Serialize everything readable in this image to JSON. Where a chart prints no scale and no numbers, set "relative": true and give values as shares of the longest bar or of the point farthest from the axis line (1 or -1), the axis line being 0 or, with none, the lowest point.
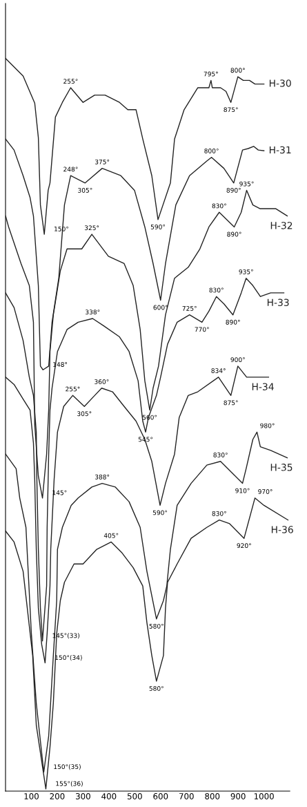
{
  "chart_data": {
    "type": "line",
    "relative": true,
    "xlim": [
      0,
      1100
    ],
    "xticks": [
      100,
      200,
      300,
      400,
      500,
      600,
      700,
      800,
      900,
      1000
    ],
    "grid": false,
    "legend": false,
    "marker": "none",
    "line_style": "solid",
    "series": [
      {
        "name": "H-30",
        "color": "#222222",
        "x": [
          0,
          68,
          113,
          127,
          135,
          150,
          165,
          172,
          193,
          220,
          252,
          300,
          345,
          385,
          441,
          473,
          505,
          531,
          566,
          590,
          638,
          654,
          691,
          744,
          787,
          795,
          800,
          832,
          853,
          872,
          899,
          920,
          944,
          965,
          1000
        ],
        "values": [
          1.0,
          0.976,
          0.939,
          0.892,
          0.8,
          0.76,
          0.82,
          0.83,
          0.92,
          0.94,
          0.96,
          0.94,
          0.95,
          0.95,
          0.94,
          0.93,
          0.93,
          0.89,
          0.84,
          0.78,
          0.83,
          0.89,
          0.93,
          0.96,
          0.96,
          0.97,
          0.96,
          0.96,
          0.955,
          0.94,
          0.975,
          0.97,
          0.97,
          0.965,
          0.965
        ]
      },
      {
        "name": "H-31",
        "color": "#222222",
        "x": [
          0,
          33,
          68,
          95,
          108,
          127,
          135,
          145,
          167,
          180,
          206,
          228,
          252,
          308,
          374,
          446,
          499,
          539,
          571,
          600,
          619,
          659,
          712,
          779,
          797,
          845,
          883,
          917,
          939,
          960,
          978,
          1000
        ],
        "values": [
          0.89,
          0.875,
          0.84,
          0.81,
          0.785,
          0.69,
          0.58,
          0.575,
          0.58,
          0.64,
          0.7,
          0.8,
          0.84,
          0.83,
          0.85,
          0.84,
          0.82,
          0.77,
          0.72,
          0.67,
          0.72,
          0.8,
          0.84,
          0.86,
          0.865,
          0.85,
          0.83,
          0.875,
          0.877,
          0.88,
          0.875,
          0.874
        ]
      },
      {
        "name": "H-32",
        "color": "#222222",
        "x": [
          0,
          12,
          60,
          92,
          108,
          113,
          127,
          143,
          159,
          167,
          172,
          185,
          212,
          238,
          295,
          334,
          398,
          459,
          494,
          521,
          539,
          558,
          571,
          592,
          619,
          654,
          707,
          752,
          787,
          827,
          885,
          912,
          933,
          957,
          984,
          1045,
          1090
        ],
        "values": [
          0.785,
          0.77,
          0.72,
          0.69,
          0.64,
          0.5,
          0.43,
          0.4,
          0.46,
          0.52,
          0.6,
          0.65,
          0.71,
          0.74,
          0.74,
          0.76,
          0.73,
          0.72,
          0.69,
          0.63,
          0.56,
          0.52,
          0.55,
          0.58,
          0.65,
          0.7,
          0.715,
          0.74,
          0.77,
          0.79,
          0.77,
          0.79,
          0.82,
          0.8,
          0.795,
          0.795,
          0.785
        ]
      },
      {
        "name": "H-33",
        "color": "#222222",
        "x": [
          0,
          33,
          68,
          92,
          108,
          119,
          121,
          127,
          135,
          143,
          159,
          161,
          167,
          172,
          180,
          201,
          238,
          281,
          337,
          380,
          441,
          478,
          513,
          531,
          542,
          553,
          584,
          600,
          627,
          664,
          712,
          760,
          787,
          816,
          845,
          880,
          912,
          931,
          957,
          986,
          1026,
          1077
        ],
        "values": [
          0.68,
          0.66,
          0.615,
          0.565,
          0.54,
          0.49,
          0.43,
          0.33,
          0.25,
          0.205,
          0.28,
          0.36,
          0.46,
          0.52,
          0.55,
          0.6,
          0.63,
          0.64,
          0.645,
          0.635,
          0.62,
          0.6,
          0.56,
          0.505,
          0.49,
          0.51,
          0.54,
          0.565,
          0.61,
          0.64,
          0.65,
          0.64,
          0.655,
          0.675,
          0.665,
          0.65,
          0.68,
          0.7,
          0.69,
          0.675,
          0.68,
          0.68
        ]
      },
      {
        "name": "H-34",
        "color": "#222222",
        "x": [
          0,
          33,
          68,
          95,
          108,
          113,
          119,
          127,
          140,
          153,
          161,
          172,
          175,
          188,
          201,
          225,
          260,
          305,
          345,
          372,
          414,
          459,
          505,
          539,
          566,
          598,
          619,
          654,
          672,
          707,
          744,
          824,
          872,
          899,
          933,
          1018
        ],
        "values": [
          0.565,
          0.555,
          0.535,
          0.52,
          0.475,
          0.425,
          0.33,
          0.25,
          0.2,
          0.175,
          0.215,
          0.28,
          0.33,
          0.425,
          0.49,
          0.525,
          0.54,
          0.525,
          0.54,
          0.55,
          0.545,
          0.525,
          0.505,
          0.48,
          0.45,
          0.39,
          0.42,
          0.46,
          0.51,
          0.54,
          0.545,
          0.565,
          0.54,
          0.58,
          0.565,
          0.565
        ]
      },
      {
        "name": "H-35",
        "color": "#222222",
        "x": [
          0,
          41,
          55,
          79,
          100,
          119,
          148,
          167,
          185,
          198,
          201,
          220,
          254,
          281,
          334,
          374,
          425,
          478,
          521,
          547,
          584,
          611,
          624,
          638,
          664,
          718,
          779,
          832,
          917,
          931,
          957,
          973,
          986,
          1026,
          1090
        ],
        "values": [
          0.46,
          0.44,
          0.4,
          0.36,
          0.215,
          0.12,
          0.026,
          0.075,
          0.185,
          0.26,
          0.33,
          0.36,
          0.39,
          0.4,
          0.415,
          0.42,
          0.415,
          0.395,
          0.36,
          0.3,
          0.235,
          0.26,
          0.28,
          0.33,
          0.39,
          0.42,
          0.445,
          0.45,
          0.42,
          0.44,
          0.48,
          0.49,
          0.47,
          0.465,
          0.455
        ]
      },
      {
        "name": "H-36",
        "color": "#222222",
        "x": [
          0,
          33,
          68,
          105,
          119,
          156,
          172,
          185,
          198,
          212,
          228,
          265,
          300,
          353,
          409,
          451,
          494,
          531,
          547,
          566,
          584,
          611,
          619,
          627,
          664,
          718,
          779,
          827,
          867,
          923,
          965,
          1000,
          1093
        ],
        "values": [
          0.355,
          0.34,
          0.3,
          0.185,
          0.09,
          0.003,
          0.06,
          0.12,
          0.215,
          0.26,
          0.285,
          0.31,
          0.31,
          0.33,
          0.34,
          0.325,
          0.305,
          0.28,
          0.23,
          0.185,
          0.15,
          0.185,
          0.25,
          0.285,
          0.31,
          0.345,
          0.36,
          0.37,
          0.365,
          0.345,
          0.4,
          0.39,
          0.37
        ]
      }
    ],
    "annotations": [
      {
        "text": "255°",
        "x": 252,
        "y": 0.96
      },
      {
        "text": "150°",
        "x": 150,
        "y": 0.76
      },
      {
        "text": "590°",
        "x": 590,
        "y": 0.78
      },
      {
        "text": "795°",
        "x": 795,
        "y": 0.97
      },
      {
        "text": "875°",
        "x": 872,
        "y": 0.94
      },
      {
        "text": "800°",
        "x": 899,
        "y": 0.975
      },
      {
        "text": "148°",
        "x": 145,
        "y": 0.575
      },
      {
        "text": "248°",
        "x": 252,
        "y": 0.84
      },
      {
        "text": "305°",
        "x": 308,
        "y": 0.83
      },
      {
        "text": "375°",
        "x": 374,
        "y": 0.85
      },
      {
        "text": "600°",
        "x": 600,
        "y": 0.67
      },
      {
        "text": "800°",
        "x": 797,
        "y": 0.865
      },
      {
        "text": "890°",
        "x": 883,
        "y": 0.83
      },
      {
        "text": "145°",
        "x": 143,
        "y": 0.4
      },
      {
        "text": "325°",
        "x": 334,
        "y": 0.76
      },
      {
        "text": "560°",
        "x": 558,
        "y": 0.52
      },
      {
        "text": "830°",
        "x": 827,
        "y": 0.79
      },
      {
        "text": "890°",
        "x": 885,
        "y": 0.77
      },
      {
        "text": "935°",
        "x": 933,
        "y": 0.82
      },
      {
        "text": "145°(33)",
        "x": 143,
        "y": 0.205
      },
      {
        "text": "338°",
        "x": 337,
        "y": 0.645
      },
      {
        "text": "545°",
        "x": 542,
        "y": 0.49
      },
      {
        "text": "725°",
        "x": 712,
        "y": 0.65
      },
      {
        "text": "770°",
        "x": 760,
        "y": 0.64
      },
      {
        "text": "830°",
        "x": 816,
        "y": 0.675
      },
      {
        "text": "890°",
        "x": 880,
        "y": 0.65
      },
      {
        "text": "935°",
        "x": 931,
        "y": 0.7
      },
      {
        "text": "150°(34)",
        "x": 153,
        "y": 0.175
      },
      {
        "text": "255°",
        "x": 260,
        "y": 0.54
      },
      {
        "text": "305°",
        "x": 305,
        "y": 0.525
      },
      {
        "text": "360°",
        "x": 372,
        "y": 0.55
      },
      {
        "text": "590°",
        "x": 598,
        "y": 0.39
      },
      {
        "text": "834°",
        "x": 824,
        "y": 0.565
      },
      {
        "text": "875°",
        "x": 872,
        "y": 0.54
      },
      {
        "text": "900°",
        "x": 899,
        "y": 0.58
      },
      {
        "text": "150°(35)",
        "x": 148,
        "y": 0.026
      },
      {
        "text": "388°",
        "x": 374,
        "y": 0.42
      },
      {
        "text": "580°",
        "x": 584,
        "y": 0.235
      },
      {
        "text": "830°",
        "x": 832,
        "y": 0.45
      },
      {
        "text": "910°",
        "x": 917,
        "y": 0.42
      },
      {
        "text": "980°",
        "x": 973,
        "y": 0.49
      },
      {
        "text": "155°(36)",
        "x": 156,
        "y": 0.003
      },
      {
        "text": "405°",
        "x": 409,
        "y": 0.34
      },
      {
        "text": "580°",
        "x": 584,
        "y": 0.15
      },
      {
        "text": "830°",
        "x": 827,
        "y": 0.37
      },
      {
        "text": "920°",
        "x": 923,
        "y": 0.345
      },
      {
        "text": "970°",
        "x": 965,
        "y": 0.4
      }
    ]
  }
}
